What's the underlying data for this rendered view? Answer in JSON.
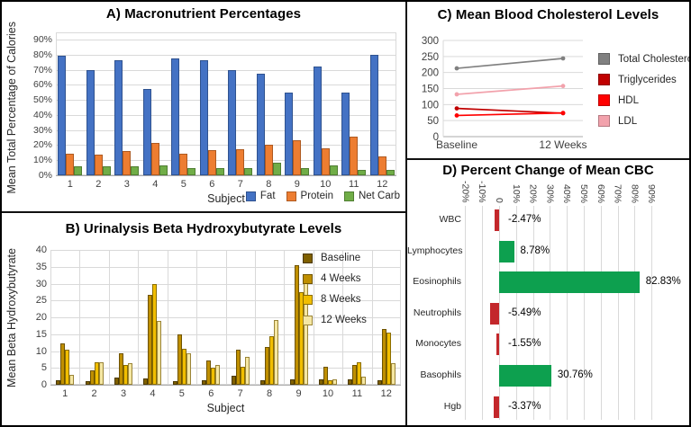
{
  "figure": {
    "background": "#ffffff",
    "border_color": "#000000",
    "grid_color": "#d9d9d9",
    "axis_color": "#ababab",
    "tick_color": "#404040"
  },
  "chart_data": [
    {
      "id": "macronutrients",
      "type": "bar",
      "title": "A) Macronutrient Percentages",
      "xlabel": "Subject",
      "ylabel": "Mean Total Percentage of Calories",
      "categories": [
        "1",
        "2",
        "3",
        "4",
        "5",
        "6",
        "7",
        "8",
        "9",
        "10",
        "11",
        "12"
      ],
      "ylim": [
        0,
        90
      ],
      "yticks": [
        "0%",
        "10%",
        "20%",
        "30%",
        "40%",
        "50%",
        "60%",
        "70%",
        "80%",
        "90%"
      ],
      "grid": "horizontal",
      "legend_position": "bottom-right",
      "series": [
        {
          "name": "Fat",
          "color": "#4472C4",
          "border": "#2F528F",
          "values": [
            79,
            69.5,
            76,
            57,
            77.5,
            76,
            69.5,
            67.5,
            55,
            72,
            55,
            80
          ]
        },
        {
          "name": "Protein",
          "color": "#ED7D31",
          "border": "#AE5A21",
          "values": [
            14.5,
            13.5,
            16,
            21.5,
            14.5,
            16.5,
            17.5,
            20.5,
            23,
            18,
            25.5,
            12.5
          ]
        },
        {
          "name": "Net Carb",
          "color": "#70AD47",
          "border": "#507E32",
          "values": [
            6,
            6,
            6,
            6.5,
            4.5,
            4.5,
            5,
            8.5,
            4.5,
            6.5,
            3.5,
            3.5
          ]
        }
      ]
    },
    {
      "id": "beta-hydroxybutyrate",
      "type": "bar",
      "title": "B) Urinalysis Beta Hydroxybutyrate Levels",
      "xlabel": "Subject",
      "ylabel": "Mean Beta Hydroxybutyrate",
      "categories": [
        "1",
        "2",
        "3",
        "4",
        "5",
        "6",
        "7",
        "8",
        "9",
        "10",
        "11",
        "12"
      ],
      "ylim": [
        0,
        40
      ],
      "yticks": [
        "0",
        "5",
        "10",
        "15",
        "20",
        "25",
        "30",
        "35",
        "40"
      ],
      "grid": "both",
      "legend_position": "inside-right",
      "series": [
        {
          "name": "Baseline",
          "color": "#7F6000",
          "border": "#4A3800",
          "values": [
            1.3,
            1.2,
            2.1,
            1.9,
            1.1,
            1.4,
            2.8,
            1.4,
            1.5,
            1.6,
            1.7,
            1.3
          ]
        },
        {
          "name": "4 Weeks",
          "color": "#BF8F00",
          "border": "#6E5300",
          "values": [
            12.2,
            4.4,
            9.4,
            26.8,
            15,
            7.1,
            10.4,
            11.3,
            35.6,
            5.4,
            5.9,
            16.5
          ]
        },
        {
          "name": "8 Weeks",
          "color": "#F1BE00",
          "border": "#8A6D00",
          "values": [
            10.5,
            6.6,
            6,
            30,
            10.6,
            5,
            5.3,
            14.5,
            27.4,
            1.3,
            6.6,
            15.5
          ]
        },
        {
          "name": "12 Weeks",
          "color": "#F5E7A3",
          "border": "#9A8437",
          "values": [
            3,
            6.8,
            6.4,
            19,
            9.4,
            5.8,
            8.3,
            19.2,
            31.5,
            1.5,
            2.4,
            6.4
          ]
        }
      ]
    },
    {
      "id": "cholesterol",
      "type": "line",
      "title": "C) Mean Blood Cholesterol Levels",
      "categories": [
        "Baseline",
        "12 Weeks"
      ],
      "ylim": [
        0,
        300
      ],
      "yticks": [
        "0",
        "50",
        "100",
        "150",
        "200",
        "250",
        "300"
      ],
      "grid": "horizontal",
      "legend_position": "right",
      "series": [
        {
          "name": "Total Cholesterol",
          "color": "#808080",
          "values": [
            213,
            244
          ]
        },
        {
          "name": "Triglycerides",
          "color": "#C00000",
          "values": [
            88,
            73
          ]
        },
        {
          "name": "HDL",
          "color": "#FF0000",
          "values": [
            66,
            74
          ]
        },
        {
          "name": "LDL",
          "color": "#F2A2AC",
          "values": [
            132,
            158
          ]
        }
      ]
    },
    {
      "id": "cbc-percent-change",
      "type": "bar-horizontal",
      "title": "D) Percent Change of Mean CBC",
      "xlim": [
        -20,
        90
      ],
      "xticks": [
        "-20%",
        "-10%",
        "0",
        "10%",
        "20%",
        "30%",
        "40%",
        "50%",
        "60%",
        "70%",
        "80%",
        "90%"
      ],
      "grid": "vertical",
      "positive_color": "#0DA04F",
      "negative_color": "#C3272B",
      "categories": [
        "WBC",
        "Lymphocytes",
        "Eosinophils",
        "Neutrophils",
        "Monocytes",
        "Basophils",
        "Hgb"
      ],
      "values": [
        -2.47,
        8.78,
        82.83,
        -5.49,
        -1.55,
        30.76,
        -3.37
      ],
      "value_labels": [
        "-2.47%",
        "8.78%",
        "82.83%",
        "-5.49%",
        "-1.55%",
        "30.76%",
        "-3.37%"
      ]
    }
  ]
}
